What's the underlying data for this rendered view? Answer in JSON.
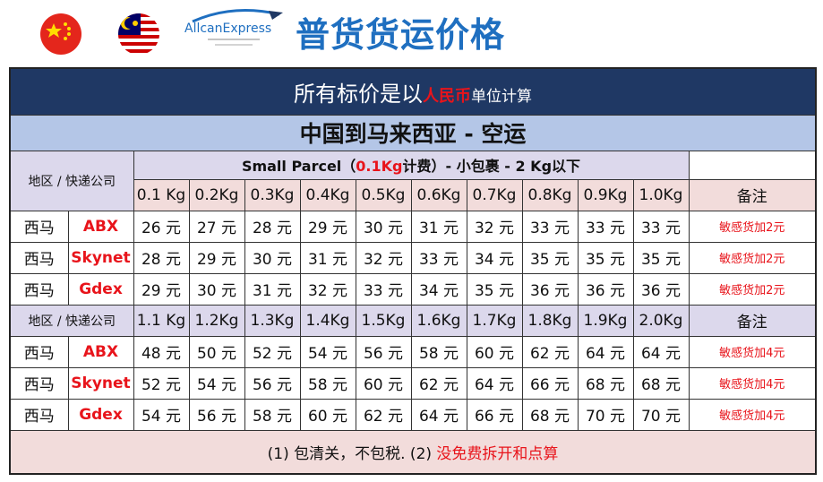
{
  "header": {
    "logo_name": "AllcanExpress",
    "title": "普货货运价格"
  },
  "table": {
    "notice": [
      "所有标价是以",
      "人民币",
      "单位计算"
    ],
    "route": "中国到马来西亚 - 空运",
    "sections": [
      {
        "region_header": "地区 / 快递公司",
        "parcel_heading": [
          "Small Parcel（",
          "0.1Kg",
          "计费）- 小包裹 - 2 Kg以下"
        ],
        "weights": [
          "0.1 Kg",
          "0.2Kg",
          "0.3Kg",
          "0.4Kg",
          "0.5Kg",
          "0.6Kg",
          "0.7Kg",
          "0.8Kg",
          "0.9Kg",
          "1.0Kg"
        ],
        "remark_header": "备注",
        "rows": [
          {
            "region": "西马",
            "courier": "ABX",
            "prices": [
              "26 元",
              "27 元",
              "28 元",
              "29 元",
              "30 元",
              "31 元",
              "32 元",
              "33 元",
              "33 元",
              "33 元"
            ],
            "remark": "敏感货加2元"
          },
          {
            "region": "西马",
            "courier": "Skynet",
            "prices": [
              "28 元",
              "29 元",
              "30 元",
              "31 元",
              "32 元",
              "33 元",
              "34 元",
              "35 元",
              "35 元",
              "35 元"
            ],
            "remark": "敏感货加2元"
          },
          {
            "region": "西马",
            "courier": "Gdex",
            "prices": [
              "29 元",
              "30 元",
              "31 元",
              "32 元",
              "33 元",
              "34 元",
              "35 元",
              "36 元",
              "36 元",
              "36 元"
            ],
            "remark": "敏感货加2元"
          }
        ]
      },
      {
        "region_header": "地区 / 快递公司",
        "weights": [
          "1.1 Kg",
          "1.2Kg",
          "1.3Kg",
          "1.4Kg",
          "1.5Kg",
          "1.6Kg",
          "1.7Kg",
          "1.8Kg",
          "1.9Kg",
          "2.0Kg"
        ],
        "remark_header": "备注",
        "rows": [
          {
            "region": "西马",
            "courier": "ABX",
            "prices": [
              "48 元",
              "50 元",
              "52 元",
              "54 元",
              "56 元",
              "58 元",
              "60 元",
              "62 元",
              "64 元",
              "64 元"
            ],
            "remark": "敏感货加4元"
          },
          {
            "region": "西马",
            "courier": "Skynet",
            "prices": [
              "52 元",
              "54 元",
              "56 元",
              "58 元",
              "60 元",
              "62 元",
              "64 元",
              "66 元",
              "68 元",
              "68 元"
            ],
            "remark": "敏感货加4元"
          },
          {
            "region": "西马",
            "courier": "Gdex",
            "prices": [
              "54 元",
              "56 元",
              "58 元",
              "60 元",
              "62 元",
              "64 元",
              "66 元",
              "68 元",
              "70 元",
              "70 元"
            ],
            "remark": "敏感货加4元"
          }
        ]
      }
    ],
    "footer": [
      "(1) 包清关，不包税. (2) ",
      "没免费拆开和点算"
    ]
  }
}
